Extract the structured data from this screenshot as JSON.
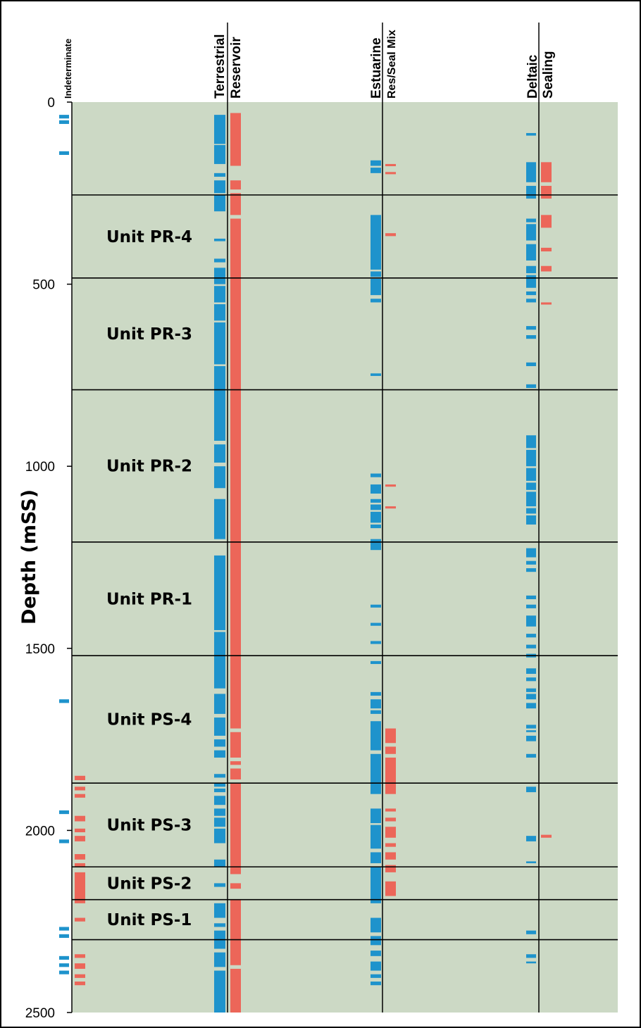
{
  "chart_data": {
    "type": "bar",
    "ylabel": "Depth (mSS)",
    "ylim": [
      0,
      2500
    ],
    "yticks": [
      "0",
      "500",
      "1000",
      "1500",
      "2000",
      "2500"
    ],
    "grid": false,
    "background_color": "#ccd9c5",
    "colors": {
      "facies": "#1e93cc",
      "seal": "#ec6659"
    },
    "columns": [
      {
        "label": "Indeterminate",
        "type": "facies"
      },
      {
        "label": "Terrestrial",
        "type": "facies"
      },
      {
        "label": "Reservoir",
        "type": "seal"
      },
      {
        "label": "Estuarine",
        "type": "facies"
      },
      {
        "label": "Res/Seal Mix",
        "type": "seal"
      },
      {
        "label": "Deltaic",
        "type": "facies"
      },
      {
        "label": "Sealing",
        "type": "seal"
      }
    ],
    "units": [
      {
        "name": "Unit PR-4",
        "top": 255,
        "base": 483
      },
      {
        "name": "Unit PR-3",
        "top": 483,
        "base": 790
      },
      {
        "name": "Unit PR-2",
        "top": 790,
        "base": 1208
      },
      {
        "name": "Unit PR-1",
        "top": 1208,
        "base": 1520
      },
      {
        "name": "Unit PS-4",
        "top": 1520,
        "base": 1870
      },
      {
        "name": "Unit PS-3",
        "top": 1870,
        "base": 2100
      },
      {
        "name": "Unit PS-2",
        "top": 2100,
        "base": 2190
      },
      {
        "name": "Unit PS-1",
        "top": 2190,
        "base": 2300
      }
    ],
    "intervals": {
      "Indeterminate": [
        [
          35,
          45
        ],
        [
          50,
          60
        ],
        [
          135,
          145
        ],
        [
          1640,
          1650
        ],
        [
          1945,
          1955
        ],
        [
          2025,
          2035
        ],
        [
          2265,
          2275
        ],
        [
          2285,
          2295
        ],
        [
          2345,
          2355
        ],
        [
          2365,
          2375
        ],
        [
          2385,
          2395
        ]
      ],
      "Indeterminate_seal": [
        [
          1850,
          1862
        ],
        [
          1880,
          1890
        ],
        [
          1900,
          1910
        ],
        [
          1960,
          1975
        ],
        [
          1995,
          2005
        ],
        [
          2015,
          2030
        ],
        [
          2065,
          2080
        ],
        [
          2090,
          2100
        ],
        [
          2115,
          2200
        ],
        [
          2240,
          2250
        ],
        [
          2340,
          2350
        ],
        [
          2365,
          2380
        ],
        [
          2395,
          2405
        ],
        [
          2415,
          2425
        ]
      ],
      "Terrestrial": [
        [
          35,
          115
        ],
        [
          118,
          170
        ],
        [
          195,
          205
        ],
        [
          215,
          250
        ],
        [
          255,
          300
        ],
        [
          375,
          382
        ],
        [
          430,
          440
        ],
        [
          455,
          500
        ],
        [
          505,
          550
        ],
        [
          555,
          600
        ],
        [
          605,
          720
        ],
        [
          725,
          930
        ],
        [
          940,
          990
        ],
        [
          1000,
          1060
        ],
        [
          1090,
          1200
        ],
        [
          1245,
          1450
        ],
        [
          1455,
          1610
        ],
        [
          1625,
          1680
        ],
        [
          1690,
          1740
        ],
        [
          1750,
          1770
        ],
        [
          1780,
          1800
        ],
        [
          1845,
          1855
        ],
        [
          1870,
          1880
        ],
        [
          1885,
          1895
        ],
        [
          1905,
          1930
        ],
        [
          1940,
          1960
        ],
        [
          1965,
          1990
        ],
        [
          1995,
          2035
        ],
        [
          2080,
          2100
        ],
        [
          2145,
          2155
        ],
        [
          2200,
          2240
        ],
        [
          2255,
          2265
        ],
        [
          2275,
          2325
        ],
        [
          2335,
          2375
        ],
        [
          2385,
          2500
        ]
      ],
      "Reservoir": [
        [
          30,
          175
        ],
        [
          215,
          240
        ],
        [
          250,
          310
        ],
        [
          320,
          1720
        ],
        [
          1730,
          1800
        ],
        [
          1810,
          1820
        ],
        [
          1830,
          1860
        ],
        [
          1870,
          2120
        ],
        [
          2145,
          2160
        ],
        [
          2190,
          2370
        ],
        [
          2380,
          2500
        ]
      ],
      "Estuarine": [
        [
          160,
          175
        ],
        [
          180,
          195
        ],
        [
          310,
          460
        ],
        [
          465,
          480
        ],
        [
          485,
          530
        ],
        [
          540,
          550
        ],
        [
          745,
          752
        ],
        [
          1020,
          1030
        ],
        [
          1050,
          1075
        ],
        [
          1090,
          1100
        ],
        [
          1105,
          1120
        ],
        [
          1125,
          1155
        ],
        [
          1160,
          1170
        ],
        [
          1200,
          1230
        ],
        [
          1380,
          1388
        ],
        [
          1430,
          1438
        ],
        [
          1480,
          1488
        ],
        [
          1535,
          1543
        ],
        [
          1620,
          1630
        ],
        [
          1640,
          1665
        ],
        [
          1670,
          1680
        ],
        [
          1700,
          1780
        ],
        [
          1790,
          1900
        ],
        [
          1940,
          1980
        ],
        [
          1985,
          2050
        ],
        [
          2060,
          2090
        ],
        [
          2100,
          2200
        ],
        [
          2240,
          2280
        ],
        [
          2290,
          2315
        ],
        [
          2330,
          2345
        ],
        [
          2360,
          2385
        ],
        [
          2395,
          2405
        ],
        [
          2415,
          2425
        ]
      ],
      "Res/Seal Mix": [
        [
          170,
          176
        ],
        [
          192,
          198
        ],
        [
          360,
          368
        ],
        [
          1050,
          1056
        ],
        [
          1110,
          1116
        ],
        [
          1720,
          1760
        ],
        [
          1770,
          1790
        ],
        [
          1800,
          1900
        ],
        [
          1940,
          1948
        ],
        [
          1965,
          1975
        ],
        [
          1990,
          2020
        ],
        [
          2035,
          2045
        ],
        [
          2060,
          2080
        ],
        [
          2095,
          2115
        ],
        [
          2140,
          2180
        ]
      ],
      "Deltaic": [
        [
          85,
          92
        ],
        [
          165,
          220
        ],
        [
          230,
          265
        ],
        [
          320,
          330
        ],
        [
          335,
          380
        ],
        [
          390,
          435
        ],
        [
          450,
          470
        ],
        [
          475,
          510
        ],
        [
          520,
          530
        ],
        [
          540,
          550
        ],
        [
          615,
          625
        ],
        [
          640,
          650
        ],
        [
          715,
          725
        ],
        [
          775,
          785
        ],
        [
          915,
          950
        ],
        [
          955,
          1000
        ],
        [
          1005,
          1040
        ],
        [
          1045,
          1065
        ],
        [
          1070,
          1110
        ],
        [
          1115,
          1130
        ],
        [
          1135,
          1160
        ],
        [
          1225,
          1250
        ],
        [
          1260,
          1270
        ],
        [
          1280,
          1290
        ],
        [
          1355,
          1365
        ],
        [
          1380,
          1390
        ],
        [
          1410,
          1440
        ],
        [
          1460,
          1470
        ],
        [
          1490,
          1500
        ],
        [
          1515,
          1525
        ],
        [
          1555,
          1570
        ],
        [
          1580,
          1590
        ],
        [
          1610,
          1620
        ],
        [
          1625,
          1640
        ],
        [
          1650,
          1665
        ],
        [
          1710,
          1720
        ],
        [
          1725,
          1730
        ],
        [
          1740,
          1755
        ],
        [
          1790,
          1800
        ],
        [
          1880,
          1895
        ],
        [
          2015,
          2030
        ],
        [
          2085,
          2090
        ],
        [
          2275,
          2285
        ],
        [
          2340,
          2350
        ],
        [
          2360,
          2365
        ]
      ],
      "Sealing": [
        [
          165,
          220
        ],
        [
          230,
          265
        ],
        [
          310,
          345
        ],
        [
          400,
          410
        ],
        [
          450,
          465
        ],
        [
          550,
          556
        ],
        [
          2012,
          2020
        ]
      ]
    }
  }
}
